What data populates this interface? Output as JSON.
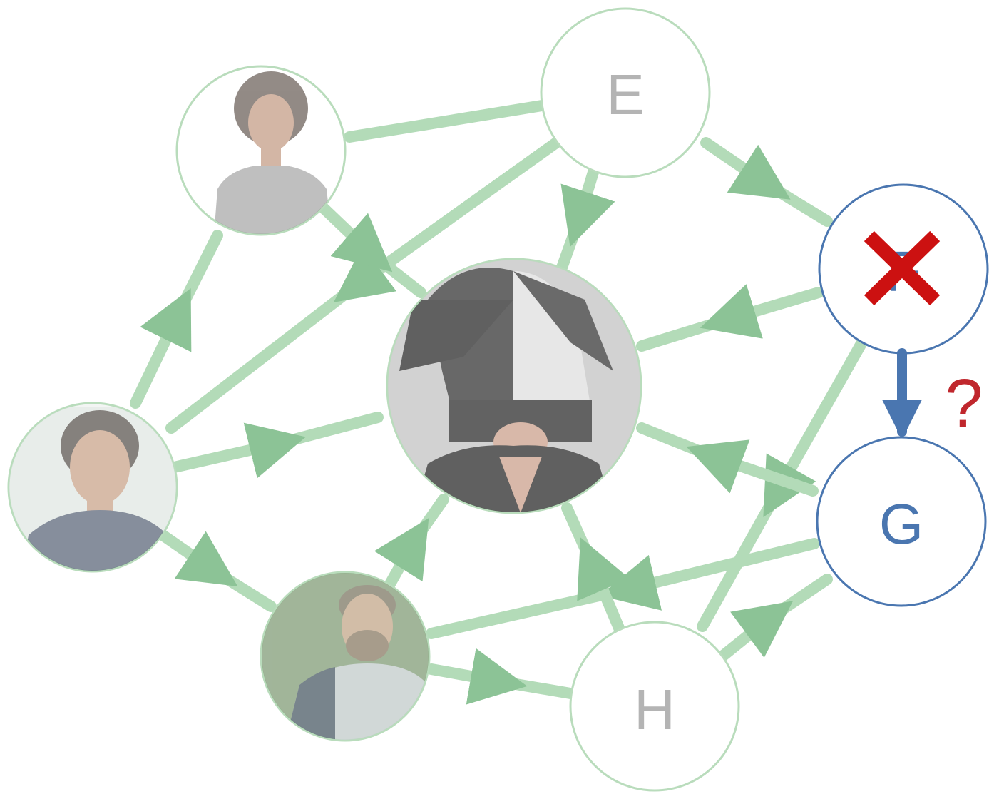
{
  "colors": {
    "faded_edge": "#9fcfa6",
    "faded_node_stroke": "#b9dcbc",
    "faded_label": "#b4b4b4",
    "active": "#4a76b0",
    "cross": "#cc1111",
    "question": "#c0272d"
  },
  "nodes": {
    "e": {
      "label": "E"
    },
    "f": {
      "label": "F"
    },
    "g": {
      "label": "G"
    },
    "h": {
      "label": "H"
    }
  },
  "avatars": {
    "curly_man": {
      "icon": "person-avatar-icon"
    },
    "woman": {
      "icon": "person-avatar-icon"
    },
    "bearded_man": {
      "icon": "person-avatar-icon"
    },
    "center": {
      "icon": "wig-avatar-icon"
    }
  },
  "annotation": {
    "question_mark": "?",
    "cross_icon": "cross-icon"
  }
}
